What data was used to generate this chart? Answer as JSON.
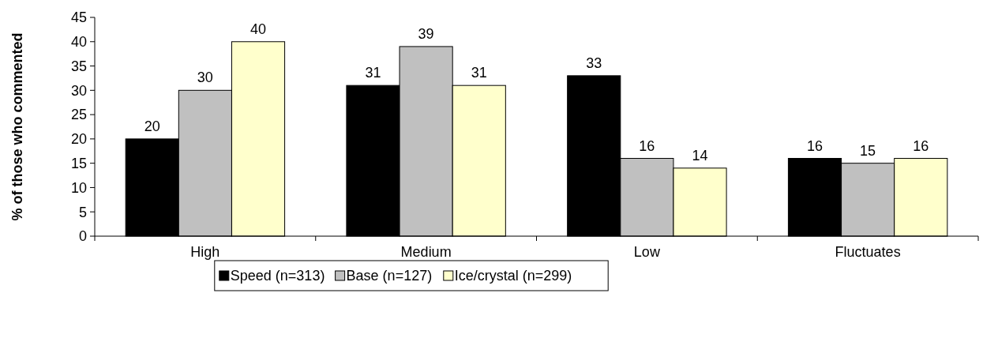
{
  "chart_data": {
    "type": "bar",
    "ylabel": "% of those who commented",
    "categories": [
      "High",
      "Medium",
      "Low",
      "Fluctuates"
    ],
    "series": [
      {
        "name": "Speed (n=313)",
        "color": "#000000",
        "values": [
          20,
          31,
          33,
          16
        ]
      },
      {
        "name": "Base (n=127)",
        "color": "#c0c0c0",
        "values": [
          30,
          39,
          16,
          15
        ]
      },
      {
        "name": "Ice/crystal (n=299)",
        "color": "#ffffcc",
        "values": [
          40,
          31,
          14,
          16
        ]
      }
    ],
    "ylim": [
      0,
      45
    ],
    "yticks": [
      0,
      5,
      10,
      15,
      20,
      25,
      30,
      35,
      40,
      45
    ],
    "grid": false,
    "legend": "bottom",
    "data_labels": true
  }
}
